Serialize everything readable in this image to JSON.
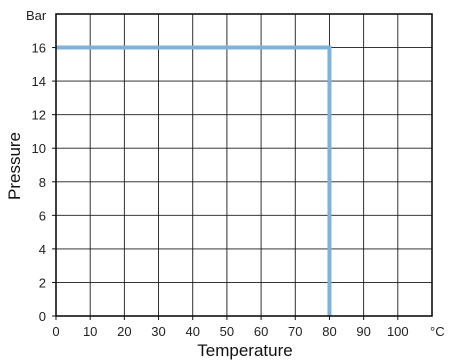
{
  "chart_data": {
    "type": "line",
    "title": "",
    "xlabel": "Temperature",
    "ylabel": "Pressure",
    "x_unit": "°C",
    "y_unit": "Bar",
    "xlim": [
      0,
      110
    ],
    "ylim": [
      0,
      18
    ],
    "x_ticks": [
      0,
      10,
      20,
      30,
      40,
      50,
      60,
      70,
      80,
      90,
      100
    ],
    "y_ticks": [
      0,
      2,
      4,
      6,
      8,
      10,
      12,
      14,
      16
    ],
    "grid": true,
    "legend": "none",
    "series": [
      {
        "color": "#7fb2d8",
        "x": [
          0,
          80,
          80
        ],
        "y": [
          16,
          16,
          0
        ]
      }
    ]
  }
}
